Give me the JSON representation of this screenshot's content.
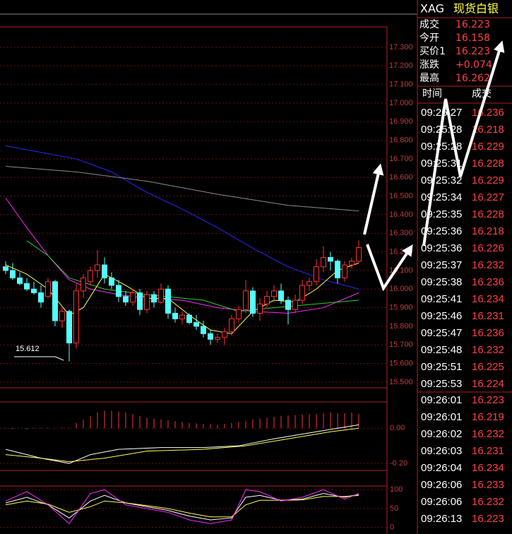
{
  "header": {
    "symbol": "XAG",
    "name": "现货白银"
  },
  "quote": [
    {
      "label": "成交",
      "value": 16.223
    },
    {
      "label": "今开",
      "value": 16.158
    },
    {
      "label": "买价1",
      "value": 16.223
    },
    {
      "label": "涨跌",
      "value": "+0.074"
    },
    {
      "label": "最高",
      "value": 16.262
    }
  ],
  "trades": {
    "columns": [
      "时间",
      "成交"
    ],
    "rows": [
      [
        "09:25:27",
        16.236
      ],
      [
        "09:25:28",
        16.218
      ],
      [
        "09:25:28",
        16.229
      ],
      [
        "09:25:31",
        16.228
      ],
      [
        "09:25:32",
        16.229
      ],
      [
        "09:25:34",
        16.227
      ],
      [
        "09:25:35",
        16.228
      ],
      [
        "09:25:36",
        16.218
      ],
      [
        "09:25:36",
        16.226
      ],
      [
        "09:25:37",
        16.232
      ],
      [
        "09:25:38",
        16.236
      ],
      [
        "09:25:41",
        16.234
      ],
      [
        "09:25:46",
        16.231
      ],
      [
        "09:25:47",
        16.236
      ],
      [
        "09:25:48",
        16.232
      ],
      [
        "09:25:51",
        16.225
      ],
      [
        "09:25:53",
        16.224
      ],
      [
        "09:26:01",
        16.223
      ],
      [
        "09:26:01",
        16.219
      ],
      [
        "09:26:02",
        16.232
      ],
      [
        "09:26:03",
        16.231
      ],
      [
        "09:26:04",
        16.234
      ],
      [
        "09:26:06",
        16.233
      ],
      [
        "09:26:06",
        16.232
      ],
      [
        "09:26:13",
        16.223
      ]
    ]
  },
  "chart": {
    "type": "candlestick",
    "up_color": "#ff3232",
    "down_color": "#54ffff",
    "ylim": [
      15.473,
      17.41
    ],
    "yticks": [
      {
        "value": 15.5,
        "label": "15.500"
      },
      {
        "value": 15.6,
        "label": "15.600"
      },
      {
        "value": 15.7,
        "label": "15.700"
      },
      {
        "value": 15.8,
        "label": "15.800"
      },
      {
        "value": 15.9,
        "label": "15.900"
      },
      {
        "value": 16.0,
        "label": "16.000"
      },
      {
        "value": 16.1,
        "label": "16.100"
      },
      {
        "value": 16.2,
        "label": "16.200"
      },
      {
        "value": 16.3,
        "label": "16.300"
      },
      {
        "value": 16.4,
        "label": "16.400"
      },
      {
        "value": 16.5,
        "label": "16.500"
      },
      {
        "value": 16.6,
        "label": "16.600"
      },
      {
        "value": 16.7,
        "label": "16.700"
      },
      {
        "value": 16.8,
        "label": "16.800"
      },
      {
        "value": 16.9,
        "label": "16.900"
      },
      {
        "value": 17.0,
        "label": "17.000"
      },
      {
        "value": 17.1,
        "label": "17.100"
      },
      {
        "value": 17.2,
        "label": "17.200"
      },
      {
        "value": 17.3,
        "label": "17.300"
      }
    ],
    "candles": [
      [
        16.12,
        16.15,
        16.08,
        16.1
      ],
      [
        16.1,
        16.14,
        16.05,
        16.06
      ],
      [
        16.06,
        16.09,
        16.02,
        16.03
      ],
      [
        16.03,
        16.06,
        15.99,
        16.0
      ],
      [
        16.0,
        16.04,
        15.97,
        15.98
      ],
      [
        15.98,
        16.02,
        15.9,
        15.93
      ],
      [
        15.96,
        16.06,
        15.95,
        16.04
      ],
      [
        16.04,
        16.05,
        15.8,
        15.83
      ],
      [
        15.83,
        15.9,
        15.79,
        15.88
      ],
      [
        15.88,
        15.89,
        15.612,
        15.71
      ],
      [
        15.71,
        16.03,
        15.68,
        15.99
      ],
      [
        15.99,
        16.08,
        15.95,
        16.06
      ],
      [
        16.04,
        16.12,
        16.02,
        16.1
      ],
      [
        16.1,
        16.21,
        16.06,
        16.13
      ],
      [
        16.13,
        16.17,
        16.03,
        16.06
      ],
      [
        16.06,
        16.09,
        16.0,
        16.02
      ],
      [
        16.02,
        16.05,
        15.93,
        15.96
      ],
      [
        15.96,
        15.99,
        15.91,
        15.93
      ],
      [
        15.93,
        16.0,
        15.91,
        15.98
      ],
      [
        15.98,
        16.0,
        15.86,
        15.89
      ],
      [
        15.89,
        15.99,
        15.87,
        15.97
      ],
      [
        15.97,
        15.99,
        15.9,
        15.93
      ],
      [
        15.93,
        16.03,
        15.92,
        16.0
      ],
      [
        16.0,
        16.02,
        15.84,
        15.87
      ],
      [
        15.87,
        15.9,
        15.82,
        15.84
      ],
      [
        15.84,
        15.88,
        15.81,
        15.86
      ],
      [
        15.86,
        15.87,
        15.81,
        15.82
      ],
      [
        15.82,
        15.86,
        15.78,
        15.8
      ],
      [
        15.8,
        15.83,
        15.74,
        15.76
      ],
      [
        15.76,
        15.78,
        15.7,
        15.73
      ],
      [
        15.73,
        15.76,
        15.71,
        15.74
      ],
      [
        15.74,
        15.79,
        15.7,
        15.77
      ],
      [
        15.77,
        15.86,
        15.75,
        15.84
      ],
      [
        15.84,
        15.91,
        15.82,
        15.89
      ],
      [
        15.89,
        16.05,
        15.87,
        15.99
      ],
      [
        15.99,
        16.01,
        15.85,
        15.87
      ],
      [
        15.87,
        15.95,
        15.83,
        15.92
      ],
      [
        15.92,
        15.99,
        15.9,
        15.96
      ],
      [
        15.96,
        16.02,
        15.93,
        15.99
      ],
      [
        15.99,
        16.03,
        15.92,
        15.94
      ],
      [
        15.94,
        15.96,
        15.81,
        15.89
      ],
      [
        15.89,
        15.97,
        15.87,
        15.94
      ],
      [
        15.94,
        16.05,
        15.92,
        16.02
      ],
      [
        16.02,
        16.06,
        15.99,
        16.04
      ],
      [
        16.04,
        16.16,
        16.02,
        16.12
      ],
      [
        16.12,
        16.23,
        16.09,
        16.17
      ],
      [
        16.17,
        16.2,
        16.1,
        16.15
      ],
      [
        16.15,
        16.16,
        16.03,
        16.06
      ],
      [
        16.06,
        16.15,
        16.04,
        16.13
      ],
      [
        16.13,
        16.17,
        16.11,
        16.15
      ],
      [
        16.15,
        16.262,
        16.14,
        16.223
      ]
    ],
    "low_label": 15.612,
    "ma_lines": [
      {
        "color": "#2828ff",
        "x": [
          0,
          10,
          15,
          20,
          25,
          30,
          35,
          40,
          45,
          50
        ],
        "values": [
          16.77,
          16.7,
          16.63,
          16.52,
          16.43,
          16.33,
          16.22,
          16.12,
          16.05,
          16.0
        ]
      },
      {
        "color": "#8c8c8c",
        "x": [
          0,
          10,
          20,
          30,
          40,
          50
        ],
        "values": [
          16.66,
          16.63,
          16.58,
          16.51,
          16.45,
          16.42
        ]
      },
      {
        "color": "#ff28ff",
        "x": [
          0,
          3,
          6,
          9,
          12,
          16,
          20,
          25,
          30,
          35,
          40,
          45,
          50
        ],
        "values": [
          16.49,
          16.33,
          16.18,
          16.05,
          16.0,
          15.97,
          15.95,
          15.94,
          15.9,
          15.88,
          15.87,
          15.9,
          15.98
        ]
      },
      {
        "color": "#28d228",
        "x": [
          3,
          6,
          9,
          14,
          20,
          28,
          33,
          38,
          44,
          50
        ],
        "values": [
          16.26,
          16.18,
          16.06,
          16.0,
          15.97,
          15.94,
          15.88,
          15.9,
          15.92,
          15.94
        ]
      },
      {
        "color": "#ffff50",
        "x": [
          0,
          3,
          6,
          9,
          11,
          14,
          17,
          20,
          23,
          26,
          29,
          32,
          35,
          38,
          41,
          44,
          47,
          50
        ],
        "values": [
          16.13,
          16.08,
          16.0,
          15.86,
          15.9,
          16.08,
          16.02,
          15.95,
          15.95,
          15.86,
          15.78,
          15.76,
          15.88,
          15.94,
          15.93,
          16.0,
          16.1,
          16.14
        ]
      }
    ]
  },
  "macd": {
    "ylim": [
      -0.24,
      0.15
    ],
    "yticks": [
      {
        "value": 0,
        "label": "0.00"
      },
      {
        "value": -0.2,
        "label": "-0.20"
      }
    ],
    "histogram": [
      0.003,
      -0.004,
      0.002,
      -0.005,
      0.004,
      0.003,
      -0.003,
      0.002,
      0.005,
      0.004,
      0.03,
      0.05,
      0.07,
      0.09,
      0.1,
      0.1,
      0.095,
      0.09,
      0.08,
      0.07,
      0.06,
      0.055,
      0.05,
      0.045,
      0.04,
      0.035,
      0.03,
      0.028,
      0.025,
      0.022,
      0.02,
      0.025,
      0.03,
      0.035,
      0.04,
      0.05,
      0.055,
      0.06,
      0.065,
      0.07,
      0.072,
      0.075,
      0.078,
      0.08,
      0.08,
      0.085,
      0.09,
      0.085,
      0.085,
      0.09,
      0.08
    ],
    "lines": [
      {
        "color": "#ffffff",
        "x": [
          0,
          5,
          9,
          12,
          16,
          22,
          28,
          33,
          38,
          44,
          50
        ],
        "values": [
          -0.12,
          -0.17,
          -0.2,
          -0.15,
          -0.12,
          -0.11,
          -0.11,
          -0.1,
          -0.06,
          -0.02,
          0.02
        ]
      },
      {
        "color": "#ffff50",
        "x": [
          0,
          5,
          9,
          14,
          20,
          28,
          34,
          40,
          46,
          50
        ],
        "values": [
          -0.15,
          -0.17,
          -0.19,
          -0.17,
          -0.13,
          -0.12,
          -0.1,
          -0.06,
          -0.02,
          0.0
        ]
      }
    ]
  },
  "kdj": {
    "ylim": [
      -10,
      110
    ],
    "yticks": [
      100,
      50,
      0
    ],
    "lines": [
      {
        "color": "#ffffff",
        "x": [
          0,
          3,
          6,
          9,
          12,
          14,
          17,
          20,
          23,
          26,
          29,
          32,
          34,
          36,
          39,
          42,
          45,
          48,
          50
        ],
        "values": [
          65,
          80,
          60,
          25,
          70,
          85,
          65,
          55,
          45,
          30,
          20,
          25,
          80,
          85,
          72,
          75,
          90,
          80,
          88
        ]
      },
      {
        "color": "#ffff50",
        "x": [
          0,
          3,
          6,
          9,
          12,
          14,
          17,
          20,
          23,
          26,
          29,
          32,
          34,
          36,
          39,
          42,
          45,
          48,
          50
        ],
        "values": [
          60,
          70,
          62,
          40,
          55,
          70,
          65,
          58,
          50,
          38,
          28,
          28,
          60,
          72,
          72,
          73,
          82,
          82,
          85
        ]
      },
      {
        "color": "#ff28ff",
        "x": [
          0,
          3,
          6,
          9,
          12,
          14,
          17,
          20,
          23,
          26,
          29,
          32,
          34,
          36,
          39,
          42,
          45,
          48,
          50
        ],
        "values": [
          70,
          95,
          60,
          10,
          90,
          100,
          60,
          50,
          40,
          20,
          10,
          20,
          100,
          95,
          70,
          80,
          100,
          75,
          90
        ]
      }
    ]
  }
}
